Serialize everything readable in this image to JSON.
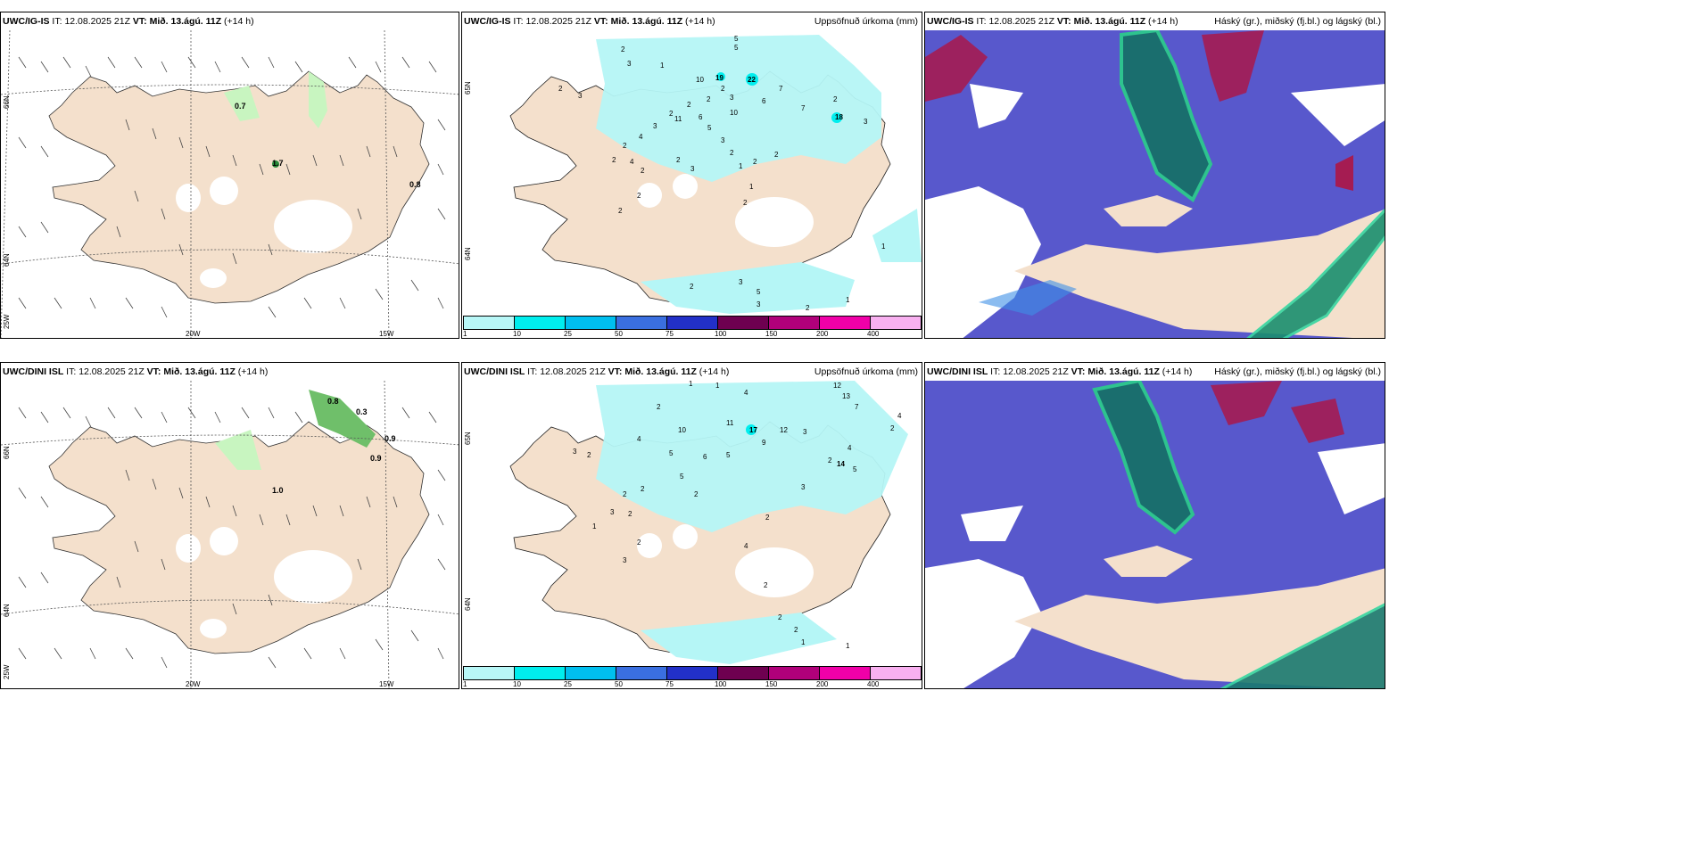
{
  "panels": [
    {
      "id": "p1",
      "model": "UWC/IG-IS",
      "init_label": "IT:",
      "init": "12.08.2025 21Z",
      "valid_label": "VT:",
      "valid": "Mið. 13.ágú. 11Z",
      "lead": "(+14 h)",
      "title_right": "",
      "axis": {
        "lat1": "66N",
        "lat2": "64N",
        "lon_left": "25W",
        "lon1": "20W",
        "lon2": "15W"
      },
      "values": [
        "0.7",
        "1.7",
        "0.8"
      ]
    },
    {
      "id": "p2",
      "model": "UWC/IG-IS",
      "init_label": "IT:",
      "init": "12.08.2025 21Z",
      "valid_label": "VT:",
      "valid": "Mið. 13.ágú. 11Z",
      "lead": "(+14 h)",
      "title_right": "Uppsöfnuð úrkoma (mm)",
      "axis": {
        "lat1": "65N",
        "lat2": "64N"
      },
      "values": [
        "5",
        "5",
        "2",
        "3",
        "1",
        "2",
        "3",
        "10",
        "2",
        "2",
        "3",
        "2",
        "2",
        "19",
        "22",
        "7",
        "7",
        "2",
        "3",
        "4",
        "2",
        "11",
        "6",
        "10",
        "6",
        "18",
        "3",
        "5",
        "3",
        "2",
        "4",
        "2",
        "2",
        "3",
        "2",
        "1",
        "2",
        "2",
        "1",
        "2",
        "2",
        "2",
        "5",
        "3",
        "3",
        "2",
        "2",
        "1",
        "1"
      ]
    },
    {
      "id": "p3",
      "model": "UWC/IG-IS",
      "init_label": "IT:",
      "init": "12.08.2025 21Z",
      "valid_label": "VT:",
      "valid": "Mið. 13.ágú. 11Z",
      "lead": "(+14 h)",
      "title_right": "Háský (gr.), miðský (fj.bl.) og lágský (bl.)"
    },
    {
      "id": "p4",
      "model": "UWC/DINI ISL",
      "init_label": "IT:",
      "init": "12.08.2025 21Z",
      "valid_label": "VT:",
      "valid": "Mið. 13.ágú. 11Z",
      "lead": "(+14 h)",
      "title_right": "",
      "axis": {
        "lat1": "66N",
        "lat2": "64N",
        "lon_left": "25W",
        "lon1": "20W",
        "lon2": "15W"
      },
      "values": [
        "0.8",
        "0.3",
        "0.9",
        "0.9",
        "1.0"
      ]
    },
    {
      "id": "p5",
      "model": "UWC/DINI ISL",
      "init_label": "IT:",
      "init": "12.08.2025 21Z",
      "valid_label": "VT:",
      "valid": "Mið. 13.ágú. 11Z",
      "lead": "(+14 h)",
      "title_right": "Uppsöfnuð úrkoma (mm)",
      "axis": {
        "lat1": "65N",
        "lat2": "64N"
      },
      "values": [
        "1",
        "1",
        "4",
        "12",
        "13",
        "2",
        "7",
        "4",
        "2",
        "10",
        "11",
        "17",
        "12",
        "9",
        "3",
        "4",
        "3",
        "2",
        "5",
        "6",
        "5",
        "2",
        "14",
        "4",
        "5",
        "3",
        "2",
        "2",
        "5",
        "2",
        "3",
        "2",
        "1",
        "3",
        "2",
        "2",
        "4",
        "2",
        "2",
        "2",
        "1",
        "1"
      ]
    },
    {
      "id": "p6",
      "model": "UWC/DINI ISL",
      "init_label": "IT:",
      "init": "12.08.2025 21Z",
      "valid_label": "VT:",
      "valid": "Mið. 13.ágú. 11Z",
      "lead": "(+14 h)",
      "title_right": "Háský (gr.), miðský (fj.bl.) og lágský (bl.)"
    }
  ],
  "colorbar": {
    "labels": [
      "1",
      "10",
      "25",
      "50",
      "75",
      "100",
      "150",
      "200",
      "400"
    ],
    "colors": [
      "#b8f7f7",
      "#00eeee",
      "#00bfef",
      "#3a6fe0",
      "#2230c8",
      "#6e0050",
      "#b0007a",
      "#f000a8",
      "#f8b0f0"
    ]
  },
  "colors": {
    "land": "#f4e0cc",
    "glacier": "#ffffff",
    "precip": "#b5f6f6",
    "low_cloud": "#5858cc",
    "mid_cloud": "#1a6e6e",
    "high_cloud": "#a51c52",
    "light_precip_green": "#c8f5c0"
  }
}
